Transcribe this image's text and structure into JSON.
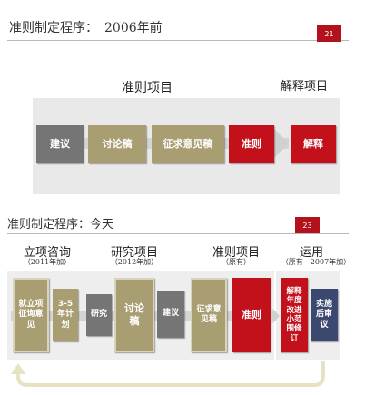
{
  "slide1": {
    "title": "准则制定程序：　2006年前",
    "page_number": "21",
    "label_project": "准则项目",
    "label_interpret": "解释项目",
    "steps": {
      "jianyi": "建议",
      "taolungao": "讨论稿",
      "zhengqiu": "征求意见稿",
      "zhunze": "准则",
      "jieshi": "解释"
    }
  },
  "slide2": {
    "title": "准则制定程序：今天",
    "page_number": "23",
    "groups": {
      "lixiang": {
        "label": "立项咨询",
        "sub": "（2011年加）"
      },
      "yanjiu": {
        "label": "研究项目",
        "sub": "（2012年加）"
      },
      "zhunze": {
        "label": "准则项目",
        "sub": "（原有）"
      },
      "yunyong": {
        "label": "运用",
        "sub": "（原有　2007年加）"
      }
    },
    "steps": {
      "jiuli": "就立项征询意见",
      "jihua": "3-5年计划",
      "yanjiu": "研究",
      "taolungao": "讨论稿",
      "jianyi": "建议",
      "zhengqiu": "征求意见稿",
      "zhunze": "准则",
      "jieshi_niandu": "解释年度改进小范围修订",
      "shishi": "实施后审议"
    }
  }
}
